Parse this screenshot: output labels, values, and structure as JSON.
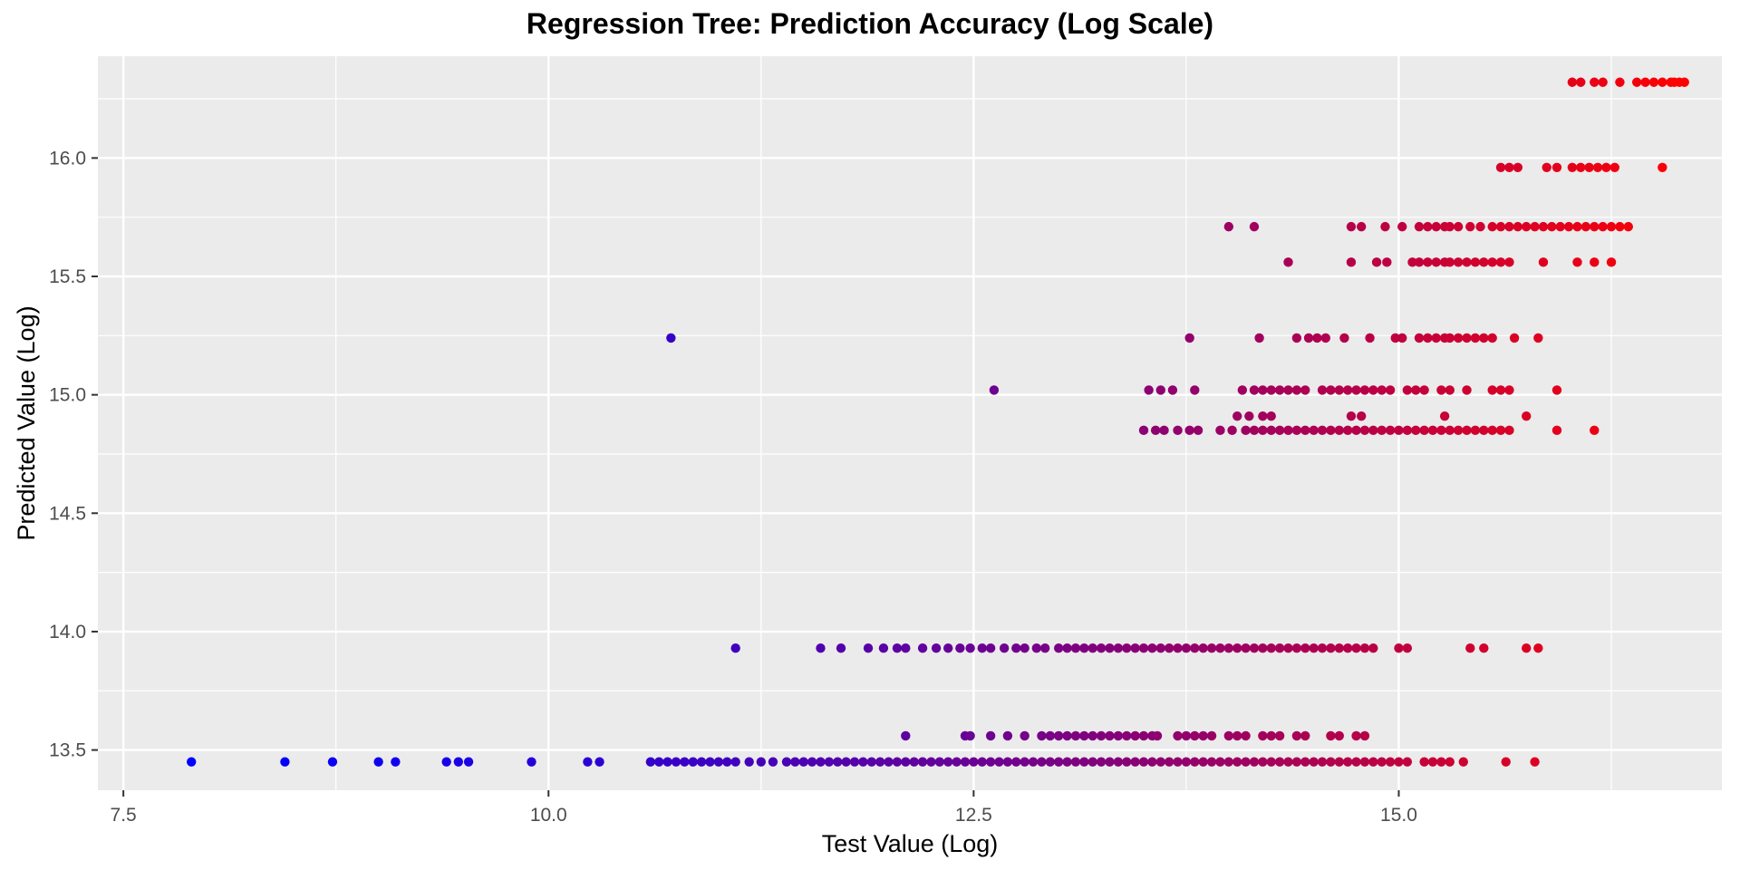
{
  "chart_data": {
    "type": "scatter",
    "title": "Regression Tree: Prediction Accuracy (Log Scale)",
    "xlabel": "Test Value (Log)",
    "ylabel": "Predicted Value (Log)",
    "xlim": [
      7.35,
      16.9
    ],
    "ylim": [
      13.33,
      16.43
    ],
    "x_ticks": [
      7.5,
      10.0,
      12.5,
      15.0
    ],
    "x_tick_labels": [
      "7.5",
      "10.0",
      "12.5",
      "15.0"
    ],
    "y_ticks": [
      13.5,
      14.0,
      14.5,
      15.0,
      15.5,
      16.0
    ],
    "y_tick_labels": [
      "13.5",
      "14.0",
      "14.5",
      "15.0",
      "15.5",
      "16.0"
    ],
    "grid": true,
    "legend": "none",
    "color_gradient": {
      "low": "#0000FF",
      "high": "#FF0000",
      "by": "test value"
    },
    "panel_background": "#EBEBEB",
    "grid_color": "#FFFFFF",
    "rows": [
      {
        "y": 13.45,
        "x": [
          7.9,
          8.45,
          8.73,
          9.0,
          9.1,
          9.4,
          9.47,
          9.53,
          9.9,
          10.23,
          10.3,
          10.6,
          10.65,
          10.7,
          10.75,
          10.8,
          10.85,
          10.9,
          10.95,
          11.0,
          11.05,
          11.1,
          11.18,
          11.25,
          11.32,
          11.4,
          11.45,
          11.5,
          11.55,
          11.6,
          11.65,
          11.7,
          11.75,
          11.8,
          11.85,
          11.9,
          11.95,
          12.0,
          12.05,
          12.1,
          12.15,
          12.2,
          12.25,
          12.3,
          12.35,
          12.4,
          12.45,
          12.5,
          12.55,
          12.6,
          12.65,
          12.7,
          12.75,
          12.8,
          12.85,
          12.9,
          12.95,
          13.0,
          13.05,
          13.1,
          13.15,
          13.2,
          13.25,
          13.3,
          13.35,
          13.4,
          13.45,
          13.5,
          13.55,
          13.6,
          13.65,
          13.7,
          13.75,
          13.8,
          13.85,
          13.9,
          13.95,
          14.0,
          14.05,
          14.1,
          14.15,
          14.2,
          14.25,
          14.3,
          14.35,
          14.4,
          14.45,
          14.5,
          14.55,
          14.6,
          14.65,
          14.7,
          14.75,
          14.8,
          14.85,
          14.9,
          14.95,
          15.0,
          15.05,
          15.15,
          15.2,
          15.25,
          15.3,
          15.38,
          15.63,
          15.8
        ]
      },
      {
        "y": 13.56,
        "x": [
          12.1,
          12.45,
          12.48,
          12.6,
          12.7,
          12.8,
          12.9,
          12.95,
          13.0,
          13.05,
          13.1,
          13.15,
          13.2,
          13.25,
          13.3,
          13.35,
          13.4,
          13.45,
          13.5,
          13.55,
          13.58,
          13.7,
          13.75,
          13.8,
          13.85,
          13.9,
          14.0,
          14.05,
          14.1,
          14.2,
          14.25,
          14.3,
          14.4,
          14.45,
          14.6,
          14.65,
          14.75,
          14.8
        ]
      },
      {
        "y": 13.93,
        "x": [
          11.1,
          11.6,
          11.72,
          11.88,
          11.97,
          12.05,
          12.1,
          12.2,
          12.28,
          12.35,
          12.42,
          12.48,
          12.55,
          12.6,
          12.68,
          12.75,
          12.8,
          12.87,
          12.92,
          13.0,
          13.05,
          13.1,
          13.15,
          13.2,
          13.25,
          13.3,
          13.35,
          13.4,
          13.45,
          13.5,
          13.55,
          13.6,
          13.65,
          13.7,
          13.75,
          13.8,
          13.85,
          13.9,
          13.95,
          14.0,
          14.05,
          14.1,
          14.15,
          14.2,
          14.25,
          14.3,
          14.35,
          14.4,
          14.45,
          14.5,
          14.55,
          14.6,
          14.65,
          14.7,
          14.75,
          14.8,
          14.85,
          15.0,
          15.05,
          15.42,
          15.5,
          15.75,
          15.82
        ]
      },
      {
        "y": 14.85,
        "x": [
          13.5,
          13.57,
          13.62,
          13.7,
          13.77,
          13.82,
          13.95,
          14.02,
          14.1,
          14.15,
          14.2,
          14.25,
          14.3,
          14.35,
          14.4,
          14.45,
          14.5,
          14.55,
          14.6,
          14.65,
          14.7,
          14.75,
          14.8,
          14.85,
          14.9,
          14.95,
          15.0,
          15.05,
          15.1,
          15.15,
          15.2,
          15.25,
          15.3,
          15.35,
          15.4,
          15.45,
          15.5,
          15.55,
          15.6,
          15.65,
          15.93,
          16.15
        ]
      },
      {
        "y": 14.91,
        "x": [
          14.05,
          14.12,
          14.2,
          14.25,
          14.72,
          14.78,
          15.27,
          15.75
        ]
      },
      {
        "y": 15.02,
        "x": [
          12.62,
          13.53,
          13.6,
          13.67,
          13.8,
          14.08,
          14.15,
          14.2,
          14.25,
          14.3,
          14.35,
          14.4,
          14.45,
          14.55,
          14.6,
          14.65,
          14.7,
          14.75,
          14.8,
          14.85,
          14.9,
          14.95,
          15.05,
          15.1,
          15.15,
          15.25,
          15.3,
          15.4,
          15.55,
          15.6,
          15.65,
          15.93
        ]
      },
      {
        "y": 15.24,
        "x": [
          10.72,
          13.77,
          14.18,
          14.4,
          14.47,
          14.52,
          14.57,
          14.68,
          14.83,
          14.98,
          15.02,
          15.12,
          15.17,
          15.22,
          15.27,
          15.3,
          15.35,
          15.4,
          15.45,
          15.5,
          15.55,
          15.68,
          15.82
        ]
      },
      {
        "y": 15.56,
        "x": [
          14.35,
          14.72,
          14.87,
          14.93,
          15.08,
          15.12,
          15.17,
          15.22,
          15.27,
          15.3,
          15.35,
          15.4,
          15.45,
          15.5,
          15.55,
          15.6,
          15.65,
          15.85,
          16.05,
          16.15,
          16.25
        ]
      },
      {
        "y": 15.71,
        "x": [
          14.0,
          14.15,
          14.72,
          14.78,
          14.92,
          15.02,
          15.12,
          15.17,
          15.22,
          15.27,
          15.3,
          15.35,
          15.42,
          15.48,
          15.55,
          15.6,
          15.65,
          15.7,
          15.75,
          15.8,
          15.85,
          15.9,
          15.95,
          16.0,
          16.05,
          16.1,
          16.15,
          16.2,
          16.25,
          16.3,
          16.35
        ]
      },
      {
        "y": 15.96,
        "x": [
          15.6,
          15.65,
          15.7,
          15.87,
          15.93,
          16.02,
          16.07,
          16.12,
          16.17,
          16.22,
          16.27,
          16.55
        ]
      },
      {
        "y": 16.32,
        "x": [
          16.02,
          16.07,
          16.15,
          16.2,
          16.3,
          16.4,
          16.45,
          16.5,
          16.55,
          16.6,
          16.62,
          16.65,
          16.68
        ]
      }
    ]
  }
}
